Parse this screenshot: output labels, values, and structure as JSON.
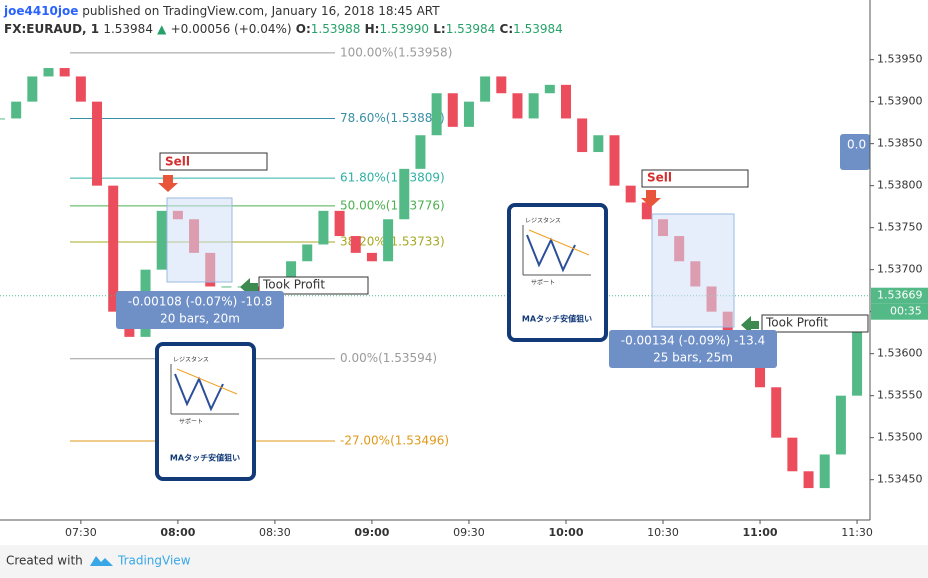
{
  "header": {
    "author": "joe4410joe",
    "published": "published on TradingView.com, January 16, 2018 18:45 ART",
    "symbol": "FX:EURAUD, 1",
    "last": "1.53984",
    "change": "+0.00056 (+0.04%)",
    "ohlc": [
      "O:",
      "1.53988",
      "H:",
      "1.53990",
      "L:",
      "1.53984",
      "C:",
      "1.53984"
    ]
  },
  "chart_data": {
    "type": "candlestick",
    "x": [
      425,
      430,
      435,
      440,
      445,
      450,
      455,
      460,
      465,
      470,
      475,
      480,
      485,
      490,
      495,
      500,
      505,
      510,
      515,
      520,
      525,
      530,
      535,
      540,
      545,
      550,
      555,
      560,
      565,
      570,
      575,
      580,
      585,
      590,
      595,
      600,
      605,
      610,
      615,
      620,
      625,
      630,
      635,
      640,
      645,
      650,
      655,
      660,
      665,
      670,
      675,
      680,
      685,
      690
    ],
    "series": [
      {
        "values": [
          1.5388,
          1.539,
          1.5393,
          1.5394,
          1.5393,
          1.539,
          1.538,
          1.5365,
          1.5362,
          1.537,
          1.5377,
          1.5376,
          1.5372,
          1.5368,
          1.5368,
          1.5368,
          1.5366,
          1.5368,
          1.5371,
          1.5373,
          1.5377,
          1.5374,
          1.5372,
          1.5371,
          1.5376,
          1.5382,
          1.5386,
          1.5391,
          1.5387,
          1.539,
          1.5393,
          1.5391,
          1.5388,
          1.5391,
          1.5392,
          1.5388,
          1.5384,
          1.5386,
          1.538,
          1.5378,
          1.5376,
          1.5374,
          1.5371,
          1.5368,
          1.5365,
          1.5362,
          1.5361,
          1.5356,
          1.535,
          1.5346,
          1.5344,
          1.5348,
          1.5355,
          1.5364
        ]
      }
    ],
    "up_color": "#53b987",
    "down_color": "#eb4d5c",
    "xlim": [
      425,
      694
    ],
    "xticks": [
      {
        "value": 450,
        "label": "07:30"
      },
      {
        "value": 480,
        "label": "08:00"
      },
      {
        "value": 510,
        "label": "08:30"
      },
      {
        "value": 540,
        "label": "09:00"
      },
      {
        "value": 570,
        "label": "09:30"
      },
      {
        "value": 600,
        "label": "10:00"
      },
      {
        "value": 630,
        "label": "10:30"
      },
      {
        "value": 660,
        "label": "11:00"
      },
      {
        "value": 690,
        "label": "11:30"
      }
    ],
    "ylim": [
      1.53402,
      1.54021
    ],
    "yticks": [
      {
        "value": 1.5395,
        "label": "1.53950"
      },
      {
        "value": 1.539,
        "label": "1.53900"
      },
      {
        "value": 1.5385,
        "label": "1.53850"
      },
      {
        "value": 1.538,
        "label": "1.53800"
      },
      {
        "value": 1.5375,
        "label": "1.53750"
      },
      {
        "value": 1.537,
        "label": "1.53700"
      },
      {
        "value": 1.5365,
        "label": "1.53650"
      },
      {
        "value": 1.536,
        "label": "1.53600"
      },
      {
        "value": 1.5355,
        "label": "1.53550"
      },
      {
        "value": 1.535,
        "label": "1.53500"
      },
      {
        "value": 1.5345,
        "label": "1.53450"
      }
    ],
    "fib_levels": [
      {
        "value": 1.53958,
        "label": "100.00%(1.53958)",
        "color": "#9b9b9b"
      },
      {
        "value": 1.5388,
        "label": "78.60%(1.53880)",
        "color": "#3a8fa8"
      },
      {
        "value": 1.53809,
        "label": "61.80%(1.53809)",
        "color": "#2fb1a4"
      },
      {
        "value": 1.53776,
        "label": "50.00%(1.53776)",
        "color": "#4caf50"
      },
      {
        "value": 1.53733,
        "label": "38.20%(1.53733)",
        "color": "#a5a821"
      },
      {
        "value": 1.53594,
        "label": "0.00%(1.53594)",
        "color": "#9b9b9b"
      },
      {
        "value": 1.53496,
        "label": "-27.00%(1.53496)",
        "color": "#e09a1a"
      }
    ],
    "current_price": {
      "value": 1.53669,
      "label": "1.53669"
    },
    "countdown": "00:35"
  },
  "annotations": {
    "sell": [
      "Sell",
      "Sell"
    ],
    "took_profit": [
      "Took Profit",
      "Took Profit"
    ],
    "measure1": [
      "-0.00108 (-0.07%) -10.8",
      "20 bars, 20m"
    ],
    "measure2": [
      "-0.00134 (-0.09%) -13.4",
      "25 bars, 25m"
    ],
    "side_box": "0.0"
  },
  "cards": [
    {
      "resistance": "レジスタンス",
      "support": "サポート",
      "title": "MAタッチ安値狙い"
    },
    {
      "resistance": "レジスタンス",
      "support": "サポート",
      "title": "MAタッチ安値狙い"
    }
  ],
  "footer": {
    "created": "Created with",
    "brand": "TradingView"
  }
}
